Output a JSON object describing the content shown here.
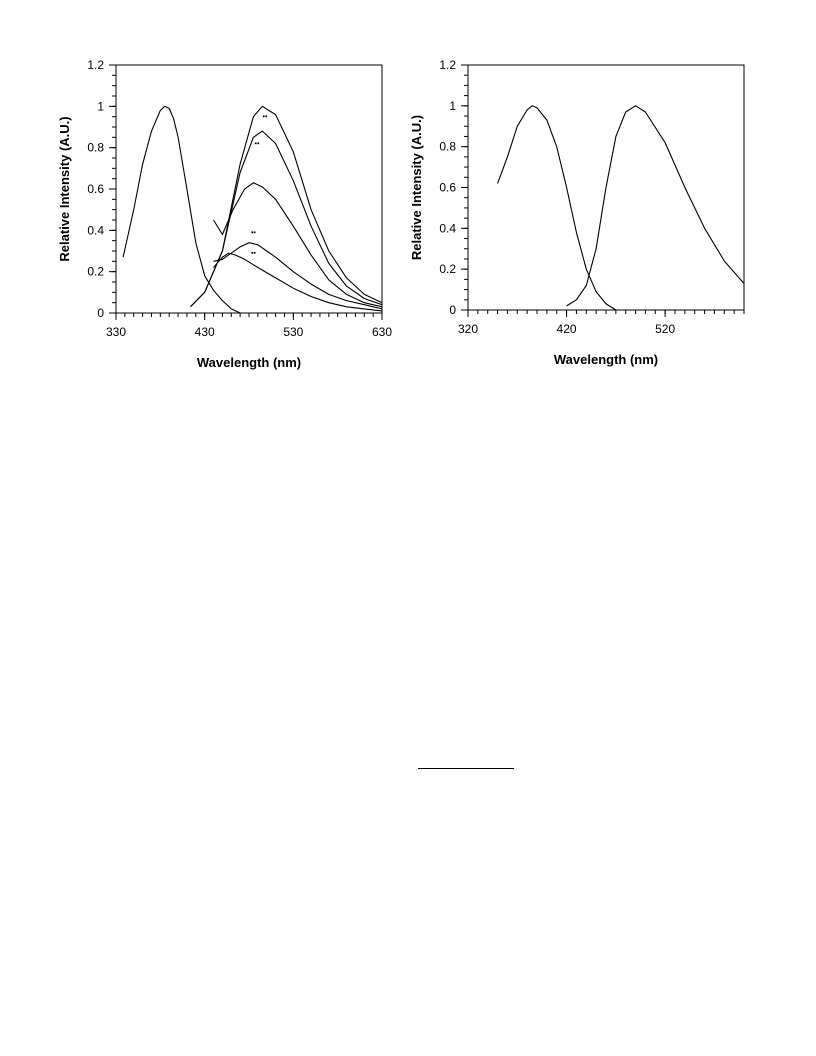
{
  "chart_data": [
    {
      "type": "line",
      "title": "",
      "xlabel": "Wavelength (nm)",
      "ylabel": "Relative Intensity (A.U.)",
      "xlim": [
        330,
        630
      ],
      "ylim": [
        0,
        1.2
      ],
      "xticks": [
        330,
        430,
        530,
        630
      ],
      "yticks": [
        0,
        0.2,
        0.4,
        0.6,
        0.8,
        1,
        1.2
      ],
      "ytick_labels": [
        "0",
        "0.2",
        "0.4",
        "0.6",
        "0.8",
        "1",
        "1.2"
      ],
      "grid": false,
      "legend": "none",
      "series": [
        {
          "x": [
            338,
            350,
            360,
            370,
            380,
            385,
            390,
            395,
            400,
            410,
            420,
            430,
            440,
            450,
            460,
            470
          ],
          "y": [
            0.27,
            0.5,
            0.72,
            0.88,
            0.98,
            1.0,
            0.99,
            0.94,
            0.85,
            0.6,
            0.34,
            0.18,
            0.11,
            0.06,
            0.02,
            0.0
          ]
        },
        {
          "x": [
            414,
            430,
            450,
            470,
            485,
            495,
            510,
            530,
            550,
            570,
            590,
            610,
            630
          ],
          "y": [
            0.03,
            0.1,
            0.3,
            0.72,
            0.95,
            1.0,
            0.96,
            0.78,
            0.5,
            0.3,
            0.17,
            0.09,
            0.05
          ]
        },
        {
          "x": [
            414,
            430,
            450,
            470,
            485,
            495,
            510,
            530,
            550,
            570,
            590,
            610,
            630
          ],
          "y": [
            0.03,
            0.1,
            0.3,
            0.68,
            0.85,
            0.88,
            0.82,
            0.64,
            0.42,
            0.24,
            0.13,
            0.07,
            0.04
          ]
        },
        {
          "x": [
            440,
            450,
            462,
            475,
            485,
            495,
            510,
            530,
            550,
            570,
            590,
            610,
            630
          ],
          "y": [
            0.45,
            0.38,
            0.5,
            0.6,
            0.63,
            0.61,
            0.55,
            0.42,
            0.28,
            0.16,
            0.09,
            0.05,
            0.03
          ]
        },
        {
          "x": [
            440,
            450,
            460,
            470,
            480,
            490,
            500,
            510,
            530,
            550,
            570,
            590,
            610,
            630
          ],
          "y": [
            0.25,
            0.26,
            0.29,
            0.32,
            0.34,
            0.33,
            0.3,
            0.27,
            0.2,
            0.14,
            0.09,
            0.06,
            0.04,
            0.02
          ]
        },
        {
          "x": [
            440,
            450,
            457,
            465,
            475,
            490,
            510,
            530,
            550,
            570,
            590,
            610,
            630
          ],
          "y": [
            0.22,
            0.27,
            0.29,
            0.28,
            0.26,
            0.22,
            0.17,
            0.12,
            0.08,
            0.05,
            0.03,
            0.02,
            0.01
          ]
        }
      ],
      "annotations": [
        {
          "text": "▪▪",
          "x": 498,
          "y": 0.94
        },
        {
          "text": "▪▪",
          "x": 489,
          "y": 0.81
        },
        {
          "text": "▪▪",
          "x": 485,
          "y": 0.38
        },
        {
          "text": "▪▪",
          "x": 485,
          "y": 0.28
        }
      ]
    },
    {
      "type": "line",
      "title": "",
      "xlabel": "Wavelength (nm)",
      "ylabel": "Relative Intensity (A.U.)",
      "xlim": [
        320,
        600
      ],
      "ylim": [
        0,
        1.2
      ],
      "xticks": [
        320,
        420,
        520
      ],
      "yticks": [
        0,
        0.2,
        0.4,
        0.6,
        0.8,
        1,
        1.2
      ],
      "ytick_labels": [
        "0",
        "0.2",
        "0.4",
        "0.6",
        "0.8",
        "1",
        "1.2"
      ],
      "grid": false,
      "legend": "none",
      "series": [
        {
          "x": [
            350,
            360,
            370,
            380,
            385,
            390,
            400,
            410,
            420,
            430,
            440,
            450,
            460,
            470
          ],
          "y": [
            0.62,
            0.75,
            0.9,
            0.98,
            1.0,
            0.99,
            0.93,
            0.8,
            0.6,
            0.38,
            0.2,
            0.09,
            0.03,
            0.0
          ]
        },
        {
          "x": [
            420,
            430,
            440,
            450,
            460,
            470,
            480,
            490,
            500,
            520,
            540,
            560,
            580,
            600
          ],
          "y": [
            0.02,
            0.05,
            0.12,
            0.3,
            0.6,
            0.85,
            0.97,
            1.0,
            0.97,
            0.82,
            0.6,
            0.4,
            0.24,
            0.13
          ]
        }
      ],
      "annotations": []
    }
  ]
}
